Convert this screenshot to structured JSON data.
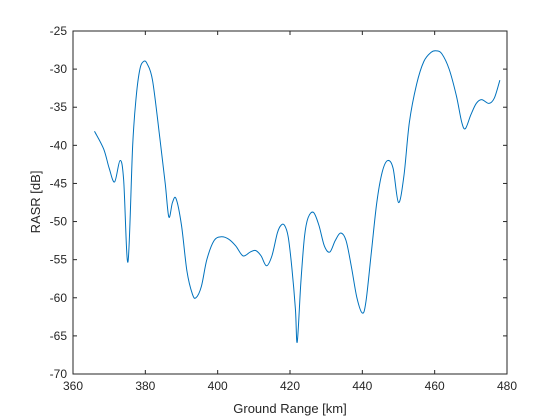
{
  "chart_data": {
    "type": "line",
    "title": "",
    "xlabel": "Ground Range [km]",
    "ylabel": "RASR [dB]",
    "xlim": [
      360,
      480
    ],
    "ylim": [
      -70,
      -25
    ],
    "xticks": [
      360,
      380,
      400,
      420,
      440,
      460,
      480
    ],
    "yticks": [
      -70,
      -65,
      -60,
      -55,
      -50,
      -45,
      -40,
      -35,
      -30,
      -25
    ],
    "grid": false,
    "legend": "none",
    "series": [
      {
        "color": "#0072BD",
        "x": [
          366.0,
          368.5,
          370.0,
          371.5,
          373.0,
          374.0,
          375.2,
          376.5,
          377.5,
          378.5,
          379.5,
          380.5,
          382.0,
          384.0,
          385.5,
          386.5,
          387.5,
          388.5,
          390.0,
          391.5,
          393.0,
          394.0,
          395.5,
          397.0,
          399.0,
          401.0,
          403.0,
          405.0,
          407.0,
          409.0,
          410.5,
          412.0,
          413.5,
          415.0,
          416.5,
          417.5,
          418.5,
          419.5,
          420.5,
          421.5,
          422.0,
          423.0,
          424.0,
          425.0,
          426.5,
          428.0,
          429.5,
          431.0,
          432.5,
          434.0,
          435.5,
          437.0,
          438.5,
          440.0,
          441.0,
          442.5,
          444.0,
          445.5,
          447.0,
          448.5,
          450.0,
          451.5,
          453.0,
          455.0,
          457.0,
          459.0,
          460.5,
          462.0,
          464.0,
          466.0,
          467.5,
          468.5,
          470.0,
          471.5,
          473.0,
          475.0,
          476.5,
          478.0
        ],
        "y": [
          -38.2,
          -40.5,
          -43.0,
          -44.8,
          -42.0,
          -44.5,
          -55.3,
          -40.0,
          -33.5,
          -30.0,
          -29.0,
          -29.3,
          -31.5,
          -39.0,
          -45.0,
          -49.4,
          -47.5,
          -47.0,
          -50.5,
          -56.5,
          -59.5,
          -60.0,
          -58.5,
          -55.0,
          -52.5,
          -52.0,
          -52.3,
          -53.2,
          -54.5,
          -54.0,
          -53.8,
          -54.5,
          -55.8,
          -54.5,
          -51.5,
          -50.5,
          -50.5,
          -52.0,
          -56.0,
          -61.5,
          -65.8,
          -58.0,
          -52.0,
          -49.5,
          -48.8,
          -50.5,
          -53.2,
          -54.0,
          -52.5,
          -51.5,
          -52.5,
          -56.0,
          -60.0,
          -62.0,
          -60.5,
          -54.0,
          -47.5,
          -43.5,
          -42.0,
          -43.0,
          -47.5,
          -44.0,
          -37.0,
          -32.0,
          -29.0,
          -27.8,
          -27.6,
          -28.0,
          -30.0,
          -33.5,
          -37.0,
          -37.8,
          -36.0,
          -34.5,
          -34.0,
          -34.5,
          -33.8,
          -31.5
        ]
      }
    ]
  }
}
